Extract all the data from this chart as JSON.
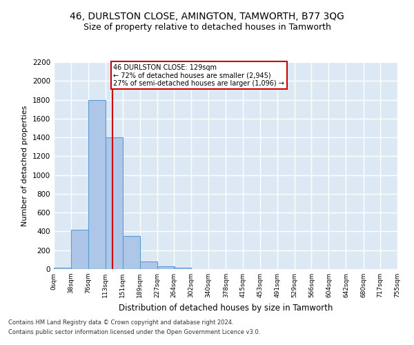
{
  "title": "46, DURLSTON CLOSE, AMINGTON, TAMWORTH, B77 3QG",
  "subtitle": "Size of property relative to detached houses in Tamworth",
  "xlabel": "Distribution of detached houses by size in Tamworth",
  "ylabel": "Number of detached properties",
  "bar_values": [
    15,
    420,
    1800,
    1400,
    350,
    80,
    30,
    15,
    0,
    0,
    0,
    0,
    0,
    0,
    0,
    0,
    0,
    0,
    0
  ],
  "bin_labels": [
    "0sqm",
    "38sqm",
    "76sqm",
    "113sqm",
    "151sqm",
    "189sqm",
    "227sqm",
    "264sqm",
    "302sqm",
    "340sqm",
    "378sqm",
    "415sqm",
    "453sqm",
    "491sqm",
    "529sqm",
    "566sqm",
    "604sqm",
    "642sqm",
    "680sqm",
    "717sqm",
    "755sqm"
  ],
  "bin_edges": [
    0,
    38,
    76,
    113,
    151,
    189,
    227,
    264,
    302,
    340,
    378,
    415,
    453,
    491,
    529,
    566,
    604,
    642,
    680,
    717,
    755
  ],
  "bar_color": "#aec6e8",
  "bar_edge_color": "#5a9bd5",
  "property_size": 129,
  "red_line_x": 129,
  "annotation_text": "46 DURLSTON CLOSE: 129sqm\n← 72% of detached houses are smaller (2,945)\n27% of semi-detached houses are larger (1,096) →",
  "annotation_box_color": "#ffffff",
  "annotation_box_edge_color": "#cc0000",
  "ylim": [
    0,
    2200
  ],
  "yticks": [
    0,
    200,
    400,
    600,
    800,
    1000,
    1200,
    1400,
    1600,
    1800,
    2000,
    2200
  ],
  "background_color": "#dce9f5",
  "grid_color": "#ffffff",
  "footer_line1": "Contains HM Land Registry data © Crown copyright and database right 2024.",
  "footer_line2": "Contains public sector information licensed under the Open Government Licence v3.0.",
  "title_fontsize": 10,
  "subtitle_fontsize": 9,
  "ylabel_fontsize": 8,
  "xlabel_fontsize": 8.5
}
